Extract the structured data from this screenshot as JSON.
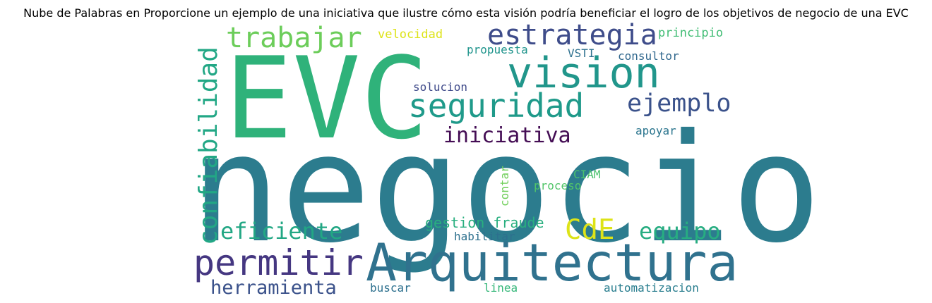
{
  "title": "Nube de Palabras en Proporcione un ejemplo de una iniciativa que ilustre cómo esta visión podría beneficiar el logro de los objetivos de negocio de una EVC",
  "words": [
    {
      "text": "negocio",
      "color": "#2c7c8e"
    },
    {
      "text": "EVC",
      "color": "#2fb27a"
    },
    {
      "text": "Arquitectura",
      "color": "#30728e"
    },
    {
      "text": "vision",
      "color": "#21968b"
    },
    {
      "text": "seguridad",
      "color": "#1f9a8a"
    },
    {
      "text": "trabajar",
      "color": "#6ccd5a"
    },
    {
      "text": "estrategia",
      "color": "#3e4c8a"
    },
    {
      "text": "permitir",
      "color": "#453781"
    },
    {
      "text": "confiabilidad",
      "color": "#22a785"
    },
    {
      "text": "ejemplo",
      "color": "#3b528b"
    },
    {
      "text": "iniciativa",
      "color": "#440d54"
    },
    {
      "text": "eficiente",
      "color": "#22a784"
    },
    {
      "text": "equipo",
      "color": "#27ad81"
    },
    {
      "text": "CdE",
      "color": "#dde318"
    },
    {
      "text": "herramienta",
      "color": "#3b528b"
    },
    {
      "text": "gestion fraude",
      "color": "#29af7f"
    },
    {
      "text": "velocidad",
      "color": "#dde318"
    },
    {
      "text": "principio",
      "color": "#3fbc73"
    },
    {
      "text": "propuesta",
      "color": "#1f948c"
    },
    {
      "text": "VSTI",
      "color": "#2d708e"
    },
    {
      "text": "consultor",
      "color": "#31688e"
    },
    {
      "text": "solucion",
      "color": "#3e4989"
    },
    {
      "text": "apoyar",
      "color": "#2b758e"
    },
    {
      "text": "CIAM",
      "color": "#4ac16d"
    },
    {
      "text": "contar",
      "color": "#6ece58"
    },
    {
      "text": "proceso",
      "color": "#52c569"
    },
    {
      "text": "habilitar",
      "color": "#2d708e"
    },
    {
      "text": "buscar",
      "color": "#2d708e"
    },
    {
      "text": "linea",
      "color": "#35b779"
    },
    {
      "text": "automatizacion",
      "color": "#287d8e"
    }
  ]
}
